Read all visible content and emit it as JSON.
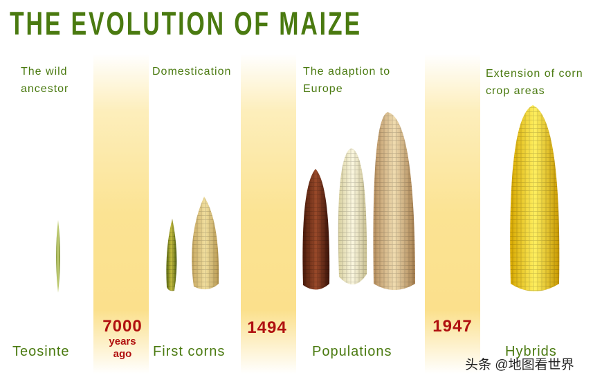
{
  "title": "THE EVOLUTION OF MAIZE",
  "stages": [
    {
      "heading_line1": "The wild",
      "heading_line2": "ancestor",
      "name": "Teosinte"
    },
    {
      "heading_line1": "Domestication",
      "heading_line2": "",
      "name": "First corns"
    },
    {
      "heading_line1": "The adaption to",
      "heading_line2": "Europe",
      "name": "Populations"
    },
    {
      "heading_line1": "Extension of corn",
      "heading_line2": "crop areas",
      "name": "Hybrids"
    }
  ],
  "dates": [
    {
      "value": "7000",
      "sub1": "years",
      "sub2": "ago"
    },
    {
      "value": "1494"
    },
    {
      "value": "1947"
    }
  ],
  "watermark": "头条 @地图看世界",
  "colors": {
    "title": "#4a7a10",
    "date": "#b01010",
    "band": "#fbe08c"
  }
}
